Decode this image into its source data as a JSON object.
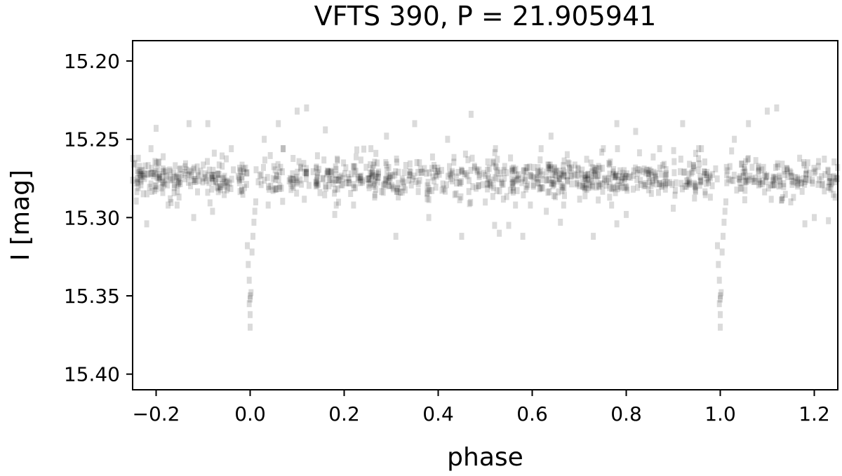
{
  "chart_data": {
    "type": "scatter",
    "title": "VFTS 390, P = 21.905941",
    "xlabel": "phase",
    "ylabel": "I [mag]",
    "xlim": [
      -0.25,
      1.25
    ],
    "ylim": [
      15.41,
      15.187
    ],
    "y_inverted": true,
    "grid": false,
    "legend": "none",
    "marker_color": "#000000",
    "marker_opacity": 0.14,
    "xticks": [
      {
        "value": -0.2,
        "label": "−0.2"
      },
      {
        "value": 0.0,
        "label": "0.0"
      },
      {
        "value": 0.2,
        "label": "0.2"
      },
      {
        "value": 0.4,
        "label": "0.4"
      },
      {
        "value": 0.6,
        "label": "0.6"
      },
      {
        "value": 0.8,
        "label": "0.8"
      },
      {
        "value": 1.0,
        "label": "1.0"
      },
      {
        "value": 1.2,
        "label": "1.2"
      }
    ],
    "yticks": [
      {
        "value": 15.2,
        "label": "15.20"
      },
      {
        "value": 15.25,
        "label": "15.25"
      },
      {
        "value": 15.3,
        "label": "15.30"
      },
      {
        "value": 15.35,
        "label": "15.35"
      },
      {
        "value": 15.4,
        "label": "15.40"
      }
    ],
    "series": [
      {
        "values": [
          [
            0.0,
            15.352
          ],
          [
            0.0,
            15.35
          ],
          [
            -0.002,
            15.355
          ],
          [
            0.002,
            15.348
          ],
          [
            0.0,
            15.362
          ],
          [
            0.0,
            15.37
          ],
          [
            -0.004,
            15.33
          ],
          [
            0.004,
            15.322
          ],
          [
            -0.002,
            15.34
          ],
          [
            0.006,
            15.312
          ],
          [
            0.008,
            15.303
          ],
          [
            0.01,
            15.296
          ],
          [
            0.012,
            15.29
          ],
          [
            -0.006,
            15.318
          ],
          [
            1.0,
            15.352
          ],
          [
            1.0,
            15.35
          ],
          [
            0.998,
            15.355
          ],
          [
            1.002,
            15.348
          ],
          [
            1.0,
            15.362
          ],
          [
            1.0,
            15.37
          ],
          [
            0.996,
            15.33
          ],
          [
            1.004,
            15.322
          ],
          [
            0.998,
            15.34
          ],
          [
            1.006,
            15.312
          ],
          [
            1.008,
            15.303
          ],
          [
            1.01,
            15.296
          ],
          [
            1.012,
            15.29
          ],
          [
            0.994,
            15.318
          ],
          [
            -0.22,
            15.304
          ],
          [
            -0.2,
            15.243
          ],
          [
            -0.13,
            15.24
          ],
          [
            -0.09,
            15.24
          ],
          [
            -0.12,
            15.3
          ],
          [
            -0.04,
            15.256
          ],
          [
            0.03,
            15.25
          ],
          [
            0.06,
            15.24
          ],
          [
            0.1,
            15.232
          ],
          [
            0.12,
            15.23
          ],
          [
            0.18,
            15.298
          ],
          [
            0.29,
            15.248
          ],
          [
            0.31,
            15.312
          ],
          [
            0.35,
            15.24
          ],
          [
            0.42,
            15.25
          ],
          [
            0.45,
            15.312
          ],
          [
            0.47,
            15.234
          ],
          [
            0.52,
            15.305
          ],
          [
            0.55,
            15.305
          ],
          [
            0.58,
            15.312
          ],
          [
            0.66,
            15.303
          ],
          [
            0.73,
            15.312
          ],
          [
            0.78,
            15.24
          ],
          [
            0.78,
            15.304
          ],
          [
            0.82,
            15.245
          ],
          [
            0.92,
            15.24
          ],
          [
            0.96,
            15.256
          ],
          [
            1.03,
            15.25
          ],
          [
            1.06,
            15.24
          ],
          [
            1.1,
            15.232
          ],
          [
            1.12,
            15.23
          ],
          [
            1.2,
            15.3
          ],
          [
            1.23,
            15.302
          ],
          [
            0.8,
            15.298
          ],
          [
            1.18,
            15.304
          ],
          [
            -0.17,
            15.288
          ],
          [
            0.22,
            15.292
          ],
          [
            0.38,
            15.3
          ],
          [
            0.63,
            15.296
          ],
          [
            0.9,
            15.294
          ],
          [
            1.15,
            15.29
          ],
          [
            0.16,
            15.244
          ],
          [
            0.64,
            15.248
          ],
          [
            -0.08,
            15.296
          ],
          [
            0.53,
            15.31
          ]
        ]
      }
    ]
  }
}
